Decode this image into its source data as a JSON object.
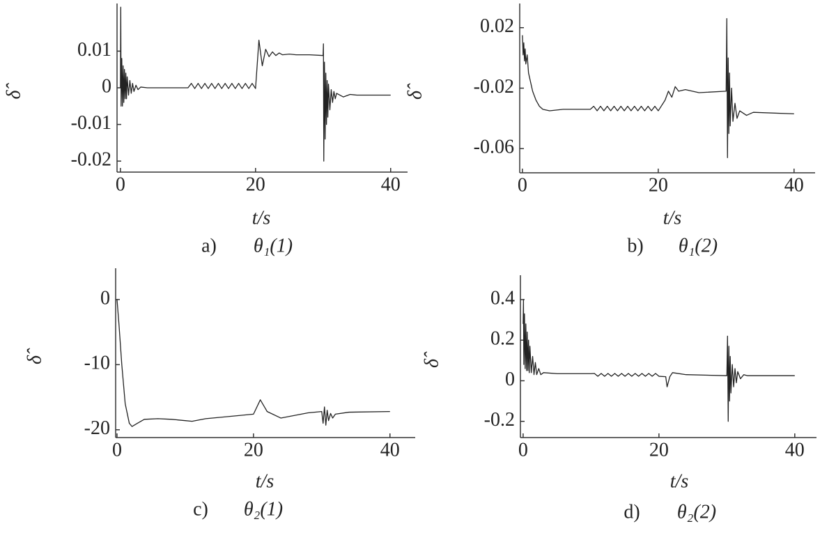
{
  "chart_data": [
    {
      "type": "line",
      "caption": "a)",
      "subtitle": "θ₁(1)",
      "xlabel": "t/s",
      "ylabel": "δ̂",
      "color": "#222222",
      "xlim": [
        -0.5,
        42.5
      ],
      "ylim": [
        -0.023,
        0.023
      ],
      "xticks": [
        0,
        20,
        40
      ],
      "yticks": [
        0.01,
        0,
        -0.01,
        -0.02
      ],
      "x": [
        0,
        0.05,
        0.1,
        0.2,
        0.3,
        0.4,
        0.5,
        0.6,
        0.7,
        0.8,
        0.9,
        1.0,
        1.2,
        1.4,
        1.6,
        1.8,
        2.0,
        2.3,
        2.6,
        3,
        4,
        10,
        10.5,
        11,
        11.5,
        12,
        12.5,
        13,
        13.5,
        14,
        14.5,
        15,
        15.5,
        16,
        16.5,
        17,
        17.5,
        18,
        18.5,
        19,
        19.5,
        20,
        20.5,
        21,
        21.5,
        22,
        22.5,
        23,
        23.5,
        24,
        25,
        26,
        28,
        30,
        30.05,
        30.1,
        30.2,
        30.3,
        30.4,
        30.5,
        30.6,
        30.7,
        30.8,
        31,
        31.2,
        31.4,
        31.6,
        31.8,
        32,
        33,
        34,
        35,
        40
      ],
      "values": [
        0,
        0.022,
        -0.005,
        0.008,
        -0.005,
        0.006,
        -0.004,
        0.005,
        -0.003,
        0.004,
        -0.003,
        0.003,
        -0.002,
        0.002,
        -0.0015,
        0.0012,
        -0.001,
        0.0007,
        -0.0005,
        0.0002,
        0,
        0,
        0.0012,
        -0.0002,
        0.0012,
        -0.0002,
        0.0012,
        -0.0002,
        0.0012,
        -0.0002,
        0.0012,
        -0.0002,
        0.0012,
        -0.0002,
        0.0012,
        -0.0002,
        0.0012,
        -0.0002,
        0.0012,
        -0.0002,
        0.0012,
        -0.0002,
        0.013,
        0.006,
        0.0105,
        0.0085,
        0.0098,
        0.0088,
        0.0095,
        0.009,
        0.0092,
        0.009,
        0.009,
        0.0088,
        0.012,
        -0.02,
        0.007,
        -0.014,
        0.004,
        -0.01,
        0.002,
        -0.008,
        0.001,
        -0.006,
        -0.0005,
        -0.004,
        -0.001,
        -0.003,
        -0.0015,
        -0.0025,
        -0.0018,
        -0.002,
        -0.002
      ]
    },
    {
      "type": "line",
      "caption": "b)",
      "subtitle": "θ₁(2)",
      "xlabel": "t/s",
      "ylabel": "δ̂",
      "color": "#222222",
      "xlim": [
        -0.4,
        43.1
      ],
      "ylim": [
        -0.076,
        0.036
      ],
      "xticks": [
        0,
        20,
        40
      ],
      "yticks": [
        0.02,
        -0.02,
        -0.06
      ],
      "x": [
        0,
        0.1,
        0.2,
        0.3,
        0.4,
        0.5,
        0.7,
        0.9,
        1.2,
        1.5,
        2,
        2.5,
        3,
        4,
        6,
        10,
        10.5,
        11,
        11.5,
        12,
        12.5,
        13,
        13.5,
        14,
        14.5,
        15,
        15.5,
        16,
        16.5,
        17,
        17.5,
        18,
        18.5,
        19,
        19.5,
        20,
        21,
        21.5,
        22,
        22.5,
        23,
        24,
        26,
        30,
        30.1,
        30.2,
        30.3,
        30.4,
        30.5,
        30.6,
        30.8,
        31,
        31.3,
        31.6,
        32,
        33,
        34,
        40
      ],
      "values": [
        0.015,
        0.002,
        0.01,
        -0.002,
        0.006,
        -0.004,
        0.002,
        -0.01,
        -0.016,
        -0.022,
        -0.028,
        -0.032,
        -0.034,
        -0.035,
        -0.034,
        -0.034,
        -0.032,
        -0.035,
        -0.032,
        -0.035,
        -0.032,
        -0.035,
        -0.032,
        -0.035,
        -0.032,
        -0.035,
        -0.032,
        -0.035,
        -0.032,
        -0.035,
        -0.032,
        -0.035,
        -0.032,
        -0.035,
        -0.032,
        -0.035,
        -0.028,
        -0.022,
        -0.026,
        -0.019,
        -0.022,
        -0.021,
        -0.023,
        -0.022,
        0.026,
        -0.066,
        0,
        -0.05,
        -0.01,
        -0.045,
        -0.02,
        -0.042,
        -0.03,
        -0.04,
        -0.035,
        -0.038,
        -0.036,
        -0.037
      ]
    },
    {
      "type": "line",
      "caption": "c)",
      "subtitle": "θ₂(1)",
      "xlabel": "t/s",
      "ylabel": "δ̂",
      "color": "#222222",
      "xlim": [
        -0.2,
        43.7
      ],
      "ylim": [
        -21.2,
        4.8
      ],
      "xticks": [
        0,
        20,
        40
      ],
      "yticks": [
        0,
        -10,
        -20
      ],
      "x": [
        0,
        0.3,
        0.7,
        1.2,
        1.8,
        2.2,
        3,
        4,
        6,
        8,
        10,
        11,
        13,
        16,
        20,
        21,
        22,
        24,
        26,
        28,
        30,
        30.2,
        30.4,
        30.6,
        30.8,
        31,
        31.3,
        31.6,
        32,
        34,
        40
      ],
      "values": [
        0,
        -4,
        -10,
        -16,
        -19,
        -19.5,
        -19,
        -18.4,
        -18.3,
        -18.4,
        -18.6,
        -18.7,
        -18.3,
        -18,
        -17.6,
        -15.4,
        -17.2,
        -18.2,
        -17.8,
        -17.4,
        -17.2,
        -19,
        -16.5,
        -19.3,
        -17,
        -18.6,
        -17.5,
        -18.2,
        -17.6,
        -17.3,
        -17.2
      ]
    },
    {
      "type": "line",
      "caption": "d)",
      "subtitle": "θ₂(2)",
      "xlabel": "t/s",
      "ylabel": "δ̂",
      "color": "#222222",
      "xlim": [
        -0.4,
        43.2
      ],
      "ylim": [
        -0.28,
        0.52
      ],
      "xticks": [
        0,
        20,
        40
      ],
      "yticks": [
        0.4,
        0.2,
        0,
        -0.2
      ],
      "x": [
        0,
        0.05,
        0.1,
        0.2,
        0.3,
        0.4,
        0.5,
        0.6,
        0.7,
        0.8,
        0.9,
        1.0,
        1.2,
        1.4,
        1.6,
        1.8,
        2,
        2.3,
        2.6,
        3,
        5,
        10,
        10.5,
        11,
        11.5,
        12,
        12.5,
        13,
        13.5,
        14,
        14.5,
        15,
        15.5,
        16,
        16.5,
        17,
        17.5,
        18,
        18.5,
        19,
        19.5,
        20,
        21,
        21.2,
        21.6,
        22,
        24,
        30,
        30.1,
        30.2,
        30.3,
        30.4,
        30.5,
        30.6,
        30.8,
        31,
        31.2,
        31.4,
        31.6,
        32,
        32.5,
        33,
        40
      ],
      "values": [
        0.28,
        0.4,
        0.08,
        0.33,
        0.06,
        0.28,
        0.05,
        0.24,
        0.05,
        0.2,
        0.04,
        0.17,
        0.04,
        0.12,
        0.03,
        0.09,
        0.03,
        0.06,
        0.03,
        0.04,
        0.035,
        0.035,
        0.036,
        0.022,
        0.036,
        0.022,
        0.036,
        0.022,
        0.036,
        0.022,
        0.036,
        0.022,
        0.036,
        0.022,
        0.036,
        0.022,
        0.036,
        0.022,
        0.036,
        0.022,
        0.036,
        0.022,
        0.02,
        -0.03,
        0.02,
        0.04,
        0.03,
        0.025,
        0.22,
        -0.2,
        0.17,
        -0.1,
        0.12,
        -0.06,
        0.08,
        -0.03,
        0.06,
        -0.01,
        0.045,
        0.01,
        0.03,
        0.025,
        0.025
      ]
    }
  ]
}
